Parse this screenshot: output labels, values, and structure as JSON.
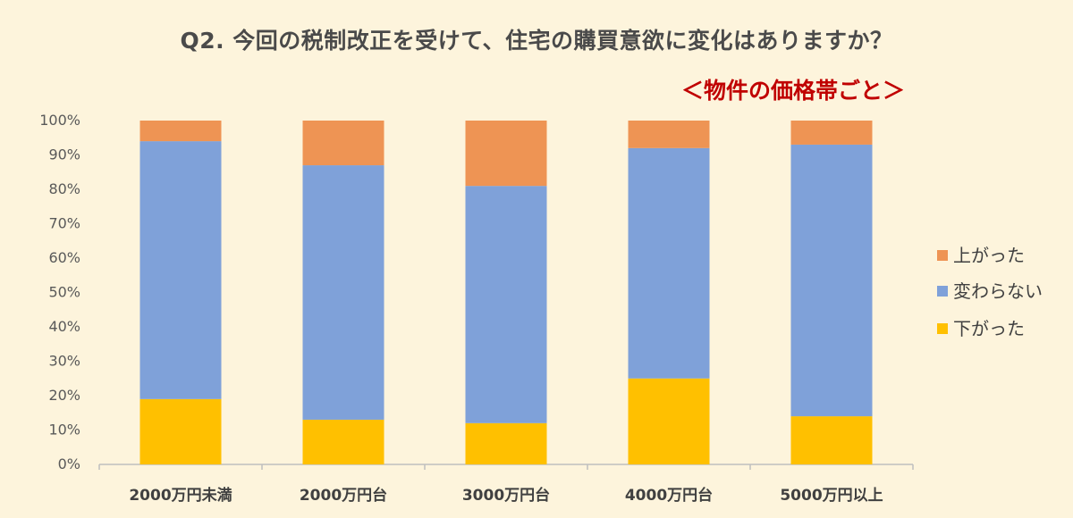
{
  "chart_data": {
    "type": "bar",
    "stacked": true,
    "title": "Q2. 今回の税制改正を受けて、住宅の購買意欲に変化はありますか？",
    "subtitle": "＜物件の価格帯ごと＞",
    "categories": [
      "2000万円未満",
      "2000万円台",
      "3000万円台",
      "4000万円台",
      "5000万円以上"
    ],
    "series": [
      {
        "name": "下がった",
        "color": "#ffc000",
        "values": [
          19,
          13,
          12,
          25,
          14
        ]
      },
      {
        "name": "変わらない",
        "color": "#7fa1d9",
        "values": [
          75,
          74,
          69,
          67,
          79
        ]
      },
      {
        "name": "上がった",
        "color": "#ee9454",
        "values": [
          6,
          13,
          19,
          8,
          7
        ]
      }
    ],
    "ylim": [
      0,
      100
    ],
    "yticks": [
      "0%",
      "10%",
      "20%",
      "30%",
      "40%",
      "50%",
      "60%",
      "70%",
      "80%",
      "90%",
      "100%"
    ],
    "legend": [
      "上がった",
      "変わらない",
      "下がった"
    ],
    "legend_position": "right",
    "grid": false
  }
}
